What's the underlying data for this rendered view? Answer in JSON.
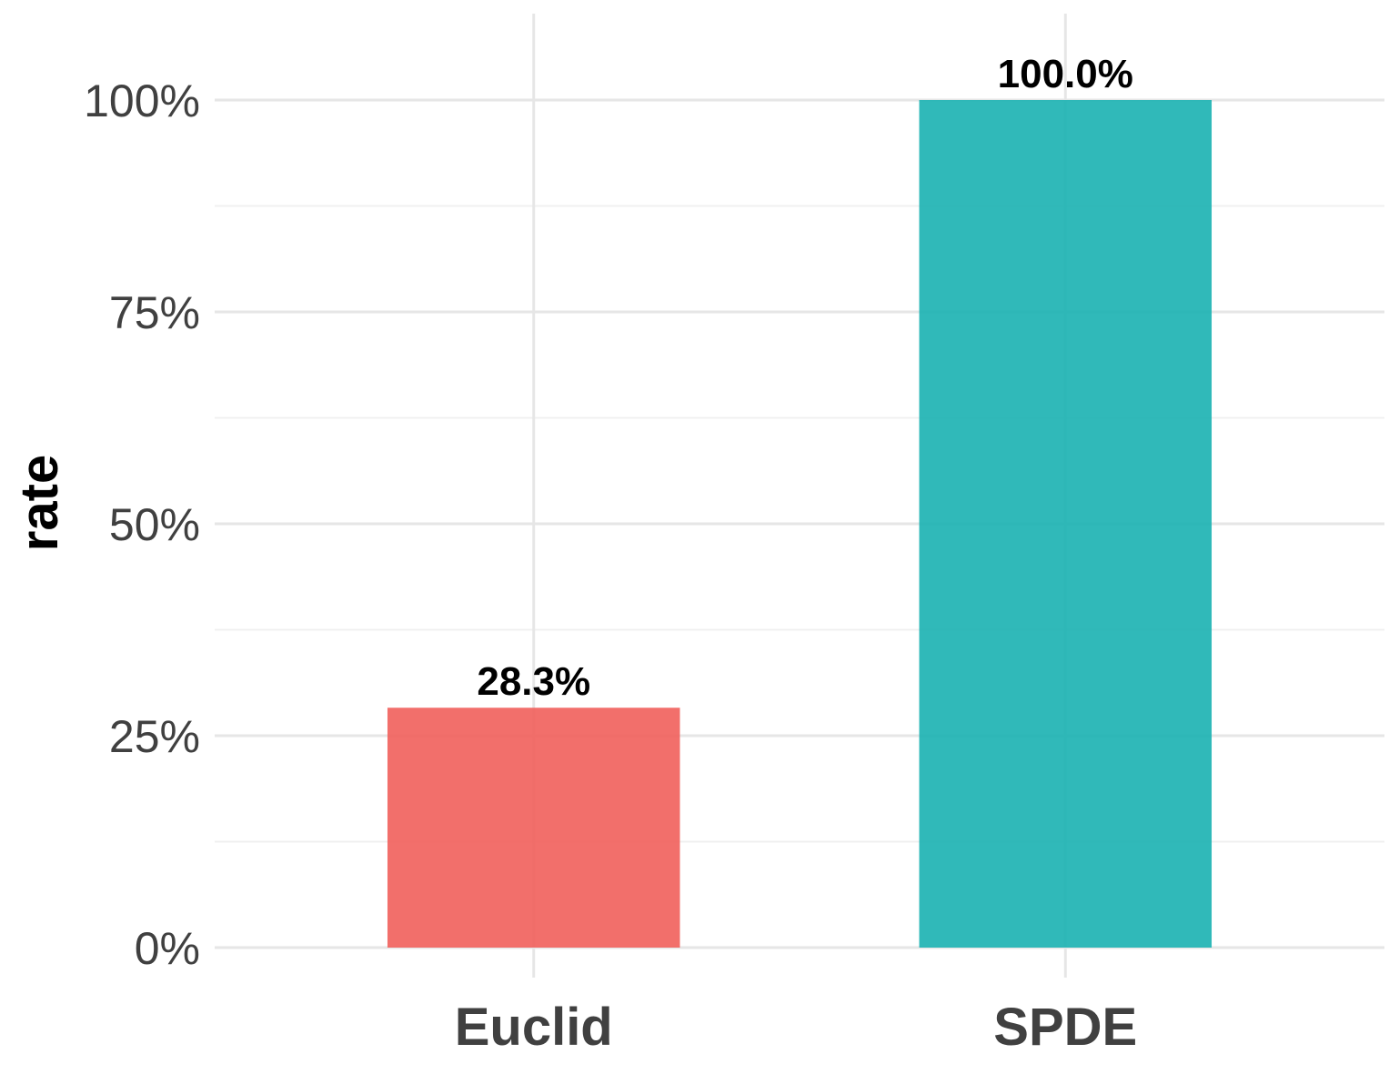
{
  "chart_data": {
    "type": "bar",
    "title": "",
    "xlabel": "",
    "ylabel": "rate",
    "categories": [
      "Euclid",
      "SPDE"
    ],
    "values": [
      28.3,
      100.0
    ],
    "value_labels": [
      "28.3%",
      "100.0%"
    ],
    "colors": [
      "#F15F5B",
      "#19B1B1"
    ],
    "bar_opacity": 0.9,
    "ylim": [
      0,
      100
    ],
    "yticks": [
      0,
      25,
      50,
      75,
      100
    ],
    "ytick_labels": [
      "0%",
      "25%",
      "50%",
      "75%",
      "100%"
    ],
    "grid": true,
    "legend": "none"
  }
}
